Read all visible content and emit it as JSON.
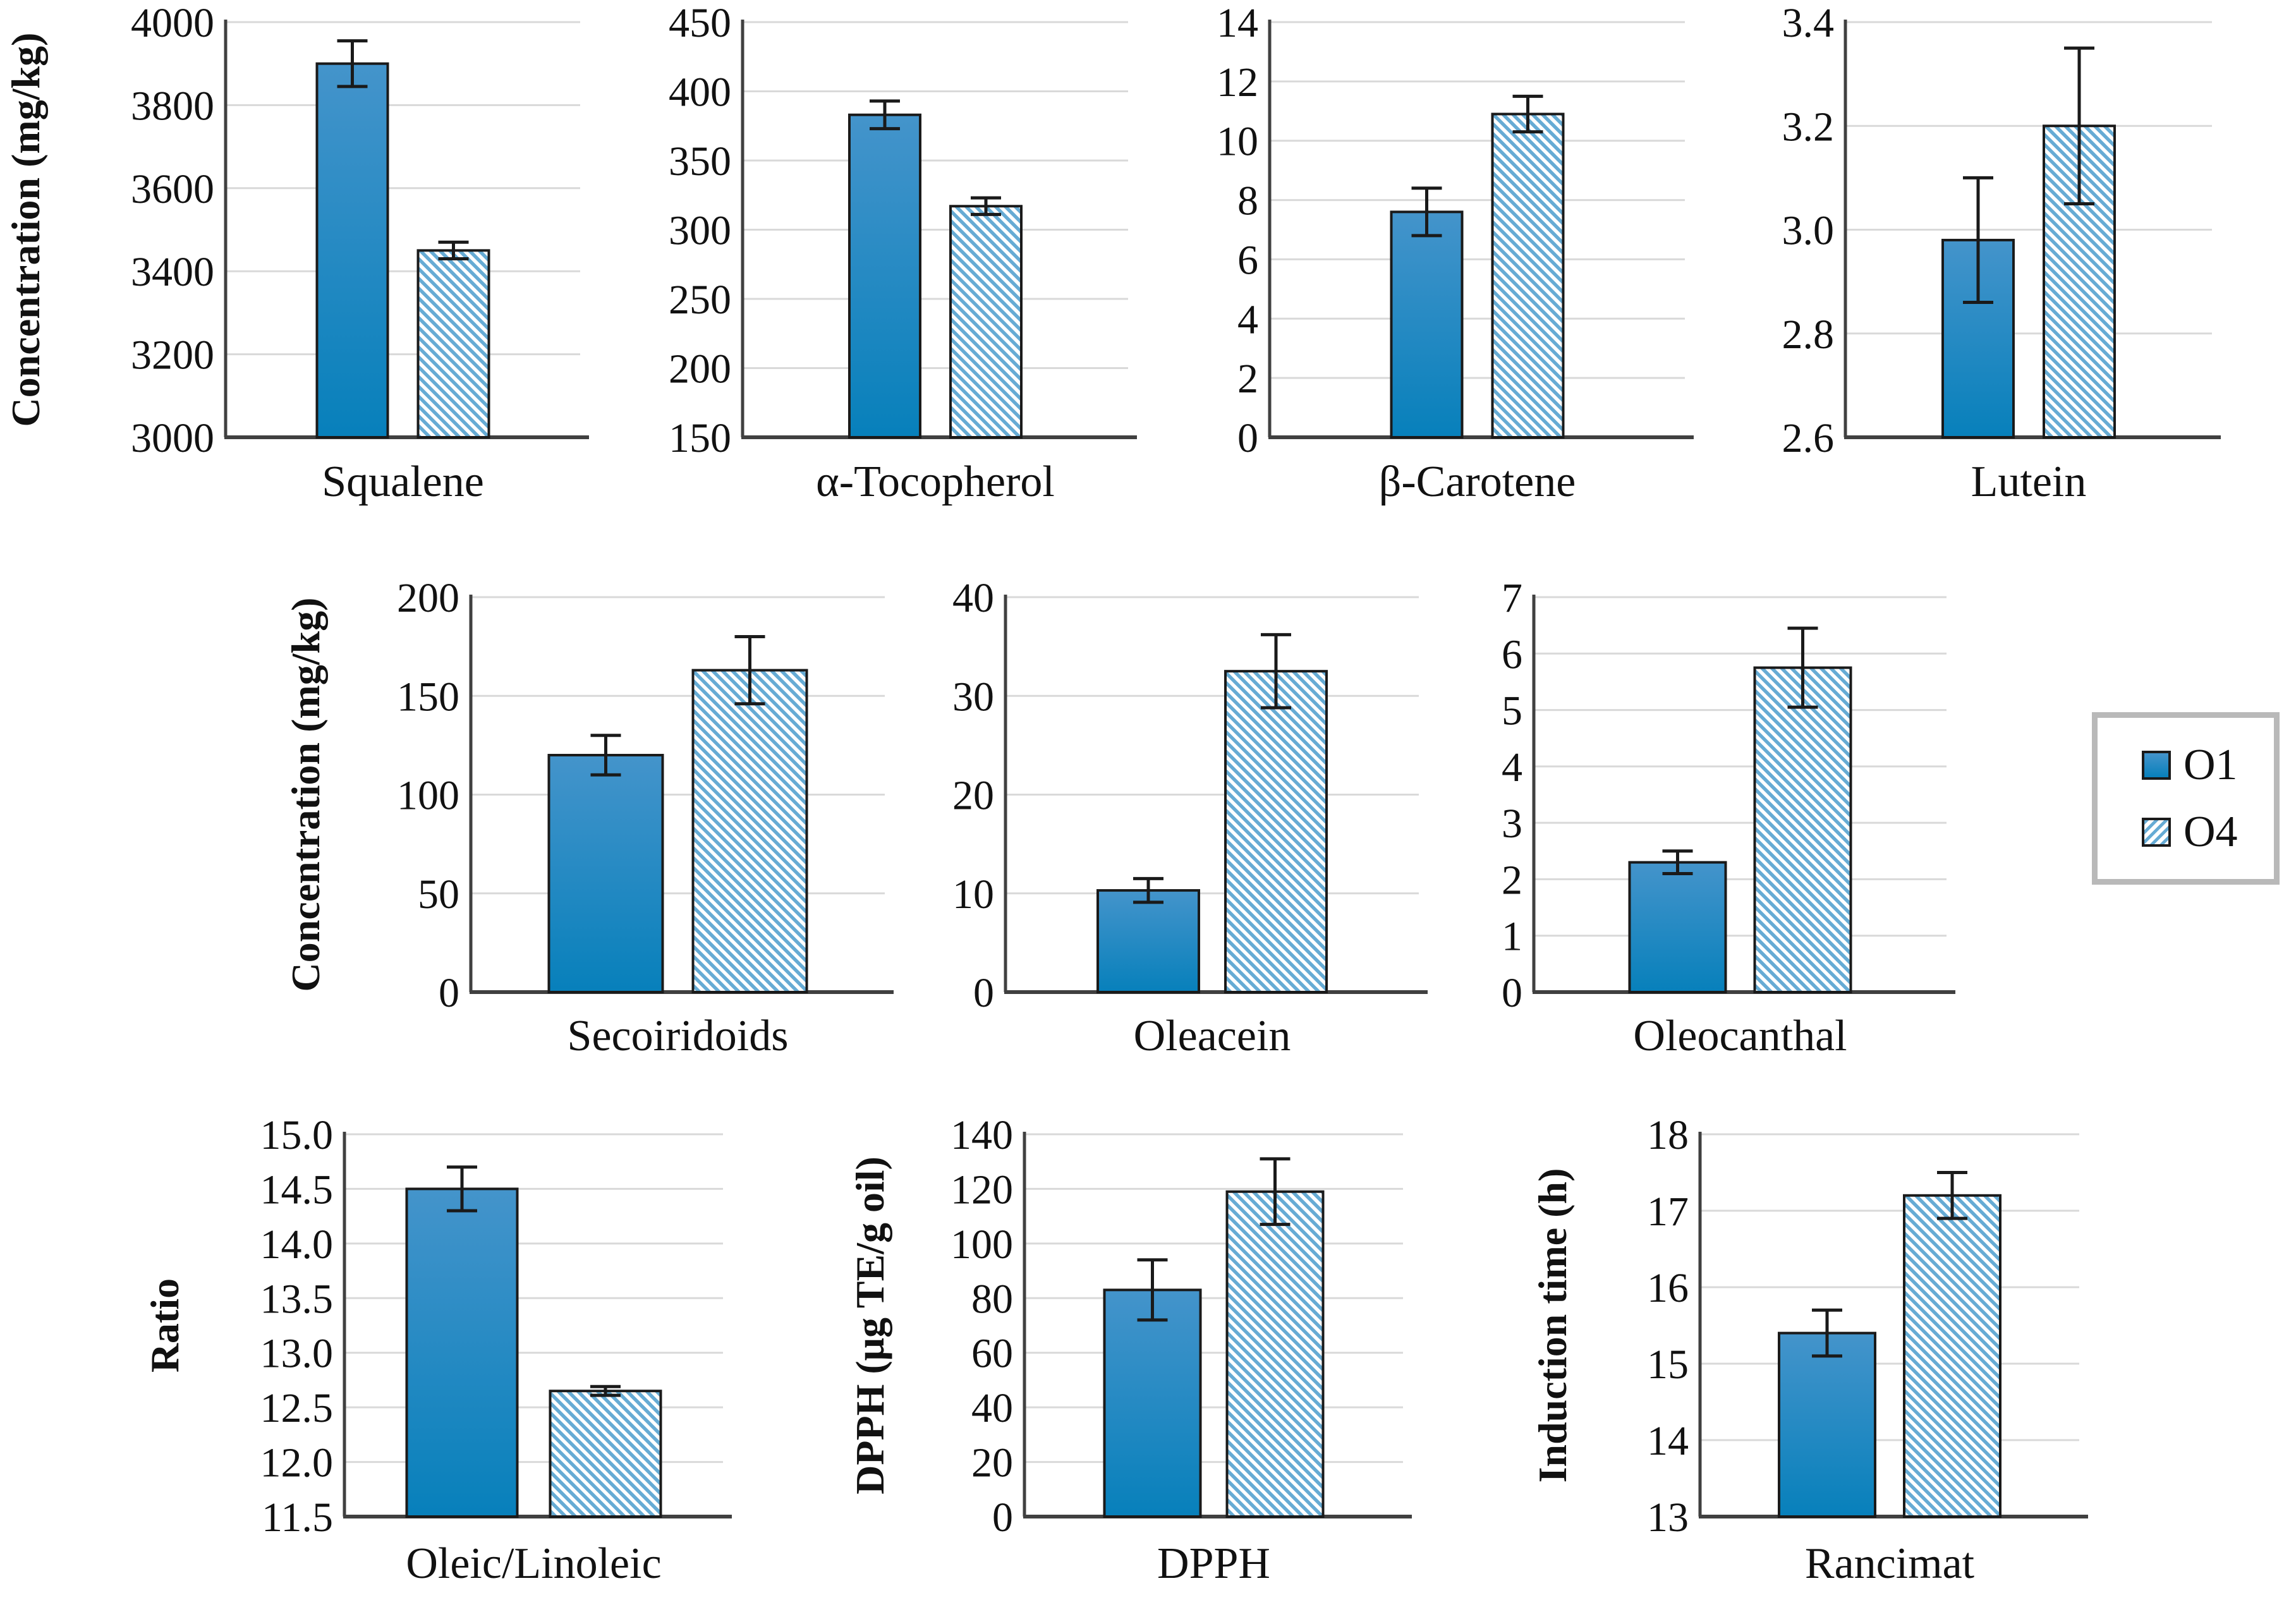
{
  "figure": {
    "background": "#ffffff"
  },
  "colors": {
    "solid_bar_top": "#4494cb",
    "solid_bar_bottom": "#0780bb",
    "hatch_stripe": "#66abd4",
    "bar_border": "#1a1a1a",
    "gridline": "#d9d9d9",
    "axis": "#404040",
    "error_bar": "#1a1a1a",
    "text": "#111111",
    "legend_border": "#b9b9b9"
  },
  "legend": {
    "items": [
      {
        "label": "O1",
        "style": "solid"
      },
      {
        "label": "O4",
        "style": "hatched"
      }
    ]
  },
  "chart_data": [
    {
      "type": "bar",
      "title": "Squalene",
      "ylabel": "Concentration (mg/kg)",
      "xlabel": "Squalene",
      "ylim": [
        3000,
        4000
      ],
      "ytick_step": 200,
      "tick_decimals": 0,
      "grid": true,
      "legend_position": "none",
      "categories": [
        "O1",
        "O4"
      ],
      "series": [
        {
          "name": "O1",
          "value": 3900,
          "error": 55
        },
        {
          "name": "O4",
          "value": 3450,
          "error": 20
        }
      ]
    },
    {
      "type": "bar",
      "title": "α-Tocopherol",
      "ylabel": "",
      "xlabel": "α-Tocopherol",
      "ylim": [
        150,
        450
      ],
      "ytick_step": 50,
      "tick_decimals": 0,
      "grid": true,
      "legend_position": "none",
      "categories": [
        "O1",
        "O4"
      ],
      "series": [
        {
          "name": "O1",
          "value": 383,
          "error": 10
        },
        {
          "name": "O4",
          "value": 317,
          "error": 6
        }
      ]
    },
    {
      "type": "bar",
      "title": "β-Carotene",
      "ylabel": "",
      "xlabel": "β-Carotene",
      "ylim": [
        0,
        14
      ],
      "ytick_step": 2,
      "tick_decimals": 0,
      "grid": true,
      "legend_position": "none",
      "categories": [
        "O1",
        "O4"
      ],
      "series": [
        {
          "name": "O1",
          "value": 7.6,
          "error": 0.8
        },
        {
          "name": "O4",
          "value": 10.9,
          "error": 0.6
        }
      ]
    },
    {
      "type": "bar",
      "title": "Lutein",
      "ylabel": "",
      "xlabel": "Lutein",
      "ylim": [
        2.6,
        3.4
      ],
      "ytick_step": 0.2,
      "tick_decimals": 1,
      "grid": true,
      "legend_position": "none",
      "categories": [
        "O1",
        "O4"
      ],
      "series": [
        {
          "name": "O1",
          "value": 2.98,
          "error": 0.12
        },
        {
          "name": "O4",
          "value": 3.2,
          "error": 0.15
        }
      ]
    },
    {
      "type": "bar",
      "title": "Secoiridoids",
      "ylabel": "Concentration (mg/kg)",
      "xlabel": "Secoiridoids",
      "ylim": [
        0,
        200
      ],
      "ytick_step": 50,
      "tick_decimals": 0,
      "grid": true,
      "legend_position": "none",
      "categories": [
        "O1",
        "O4"
      ],
      "series": [
        {
          "name": "O1",
          "value": 120,
          "error": 10
        },
        {
          "name": "O4",
          "value": 163,
          "error": 17
        }
      ]
    },
    {
      "type": "bar",
      "title": "Oleacein",
      "ylabel": "",
      "xlabel": "Oleacein",
      "ylim": [
        0,
        40
      ],
      "ytick_step": 10,
      "tick_decimals": 0,
      "grid": true,
      "legend_position": "none",
      "categories": [
        "O1",
        "O4"
      ],
      "series": [
        {
          "name": "O1",
          "value": 10.3,
          "error": 1.2
        },
        {
          "name": "O4",
          "value": 32.5,
          "error": 3.7
        }
      ]
    },
    {
      "type": "bar",
      "title": "Oleocanthal",
      "ylabel": "",
      "xlabel": "Oleocanthal",
      "ylim": [
        0,
        7
      ],
      "ytick_step": 1,
      "tick_decimals": 0,
      "grid": true,
      "legend_position": "none",
      "categories": [
        "O1",
        "O4"
      ],
      "series": [
        {
          "name": "O1",
          "value": 2.3,
          "error": 0.2
        },
        {
          "name": "O4",
          "value": 5.75,
          "error": 0.7
        }
      ]
    },
    {
      "type": "bar",
      "title": "Oleic/Linoleic",
      "ylabel": "Ratio",
      "xlabel": "Oleic/Linoleic",
      "ylim": [
        11.5,
        15.0
      ],
      "ytick_step": 0.5,
      "tick_decimals": 1,
      "grid": true,
      "legend_position": "none",
      "categories": [
        "O1",
        "O4"
      ],
      "series": [
        {
          "name": "O1",
          "value": 14.5,
          "error": 0.2
        },
        {
          "name": "O4",
          "value": 12.65,
          "error": 0.04
        }
      ]
    },
    {
      "type": "bar",
      "title": "DPPH",
      "ylabel": "DPPH (μg TE/g oil)",
      "xlabel": "DPPH",
      "ylim": [
        0,
        140
      ],
      "ytick_step": 20,
      "tick_decimals": 0,
      "grid": true,
      "legend_position": "none",
      "categories": [
        "O1",
        "O4"
      ],
      "series": [
        {
          "name": "O1",
          "value": 83,
          "error": 11
        },
        {
          "name": "O4",
          "value": 119,
          "error": 12
        }
      ]
    },
    {
      "type": "bar",
      "title": "Rancimat",
      "ylabel": "Induction time (h)",
      "xlabel": "Rancimat",
      "ylim": [
        13,
        18
      ],
      "ytick_step": 1,
      "tick_decimals": 0,
      "grid": true,
      "legend_position": "none",
      "categories": [
        "O1",
        "O4"
      ],
      "series": [
        {
          "name": "O1",
          "value": 15.4,
          "error": 0.3
        },
        {
          "name": "O4",
          "value": 17.2,
          "error": 0.3
        }
      ]
    }
  ]
}
